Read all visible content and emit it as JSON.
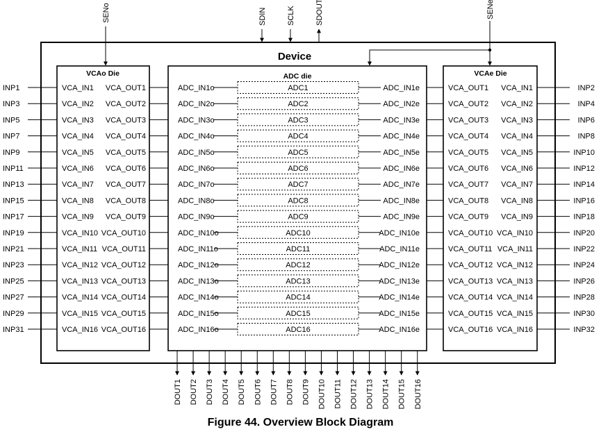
{
  "device": {
    "title": "Device",
    "top_pins": [
      "SENo",
      "SDIN",
      "SCLK",
      "SDOUT",
      "SENe"
    ]
  },
  "vcao": {
    "title": "VCAo Die",
    "in_pins": [
      "INP1",
      "INP3",
      "INP5",
      "INP7",
      "INP9",
      "INP11",
      "INP13",
      "INP15",
      "INP17",
      "INP19",
      "INP21",
      "INP23",
      "INP25",
      "INP27",
      "INP29",
      "INP31"
    ],
    "in_labels": [
      "VCA_IN1",
      "VCA_IN2",
      "VCA_IN3",
      "VCA_IN4",
      "VCA_IN5",
      "VCA_IN6",
      "VCA_IN7",
      "VCA_IN8",
      "VCA_IN9",
      "VCA_IN10",
      "VCA_IN11",
      "VCA_IN12",
      "VCA_IN13",
      "VCA_IN14",
      "VCA_IN15",
      "VCA_IN16"
    ],
    "out_labels": [
      "VCA_OUT1",
      "VCA_OUT2",
      "VCA_OUT3",
      "VCA_OUT4",
      "VCA_OUT5",
      "VCA_OUT6",
      "VCA_OUT7",
      "VCA_OUT8",
      "VCA_OUT9",
      "VCA_OUT10",
      "VCA_OUT11",
      "VCA_OUT12",
      "VCA_OUT13",
      "VCA_OUT14",
      "VCA_OUT15",
      "VCA_OUT16"
    ]
  },
  "adc": {
    "title": "ADC die",
    "in_o": [
      "ADC_IN1o",
      "ADC_IN2o",
      "ADC_IN3o",
      "ADC_IN4o",
      "ADC_IN5o",
      "ADC_IN6o",
      "ADC_IN7o",
      "ADC_IN8o",
      "ADC_IN9o",
      "ADC_IN10o",
      "ADC_IN11o",
      "ADC_IN12o",
      "ADC_IN13o",
      "ADC_IN14o",
      "ADC_IN15o",
      "ADC_IN16o"
    ],
    "blocks": [
      "ADC1",
      "ADC2",
      "ADC3",
      "ADC4",
      "ADC5",
      "ADC6",
      "ADC7",
      "ADC8",
      "ADC9",
      "ADC10",
      "ADC11",
      "ADC12",
      "ADC13",
      "ADC14",
      "ADC15",
      "ADC16"
    ],
    "in_e": [
      "ADC_IN1e",
      "ADC_IN2e",
      "ADC_IN3e",
      "ADC_IN4e",
      "ADC_IN5e",
      "ADC_IN6e",
      "ADC_IN7e",
      "ADC_IN8e",
      "ADC_IN9e",
      "ADC_IN10e",
      "ADC_IN11e",
      "ADC_IN12e",
      "ADC_IN13e",
      "ADC_IN14e",
      "ADC_IN15e",
      "ADC_IN16e"
    ],
    "dout": [
      "DOUT1",
      "DOUT2",
      "DOUT3",
      "DOUT4",
      "DOUT5",
      "DOUT6",
      "DOUT7",
      "DOUT8",
      "DOUT9",
      "DOUT10",
      "DOUT11",
      "DOUT12",
      "DOUT13",
      "DOUT14",
      "DOUT15",
      "DOUT16"
    ]
  },
  "vcae": {
    "title": "VCAe Die",
    "out_labels": [
      "VCA_OUT1",
      "VCA_OUT2",
      "VCA_OUT3",
      "VCA_OUT4",
      "VCA_OUT5",
      "VCA_OUT6",
      "VCA_OUT7",
      "VCA_OUT8",
      "VCA_OUT9",
      "VCA_OUT10",
      "VCA_OUT11",
      "VCA_OUT12",
      "VCA_OUT13",
      "VCA_OUT14",
      "VCA_OUT15",
      "VCA_OUT16"
    ],
    "in_labels": [
      "VCA_IN1",
      "VCA_IN2",
      "VCA_IN3",
      "VCA_IN4",
      "VCA_IN5",
      "VCA_IN6",
      "VCA_IN7",
      "VCA_IN8",
      "VCA_IN9",
      "VCA_IN10",
      "VCA_IN11",
      "VCA_IN12",
      "VCA_IN13",
      "VCA_IN14",
      "VCA_IN15",
      "VCA_IN16"
    ],
    "in_pins": [
      "INP2",
      "INP4",
      "INP6",
      "INP8",
      "INP10",
      "INP12",
      "INP14",
      "INP16",
      "INP18",
      "INP20",
      "INP22",
      "INP24",
      "INP26",
      "INP28",
      "INP30",
      "INP32"
    ]
  },
  "caption": "Figure 44.  Overview Block Diagram"
}
